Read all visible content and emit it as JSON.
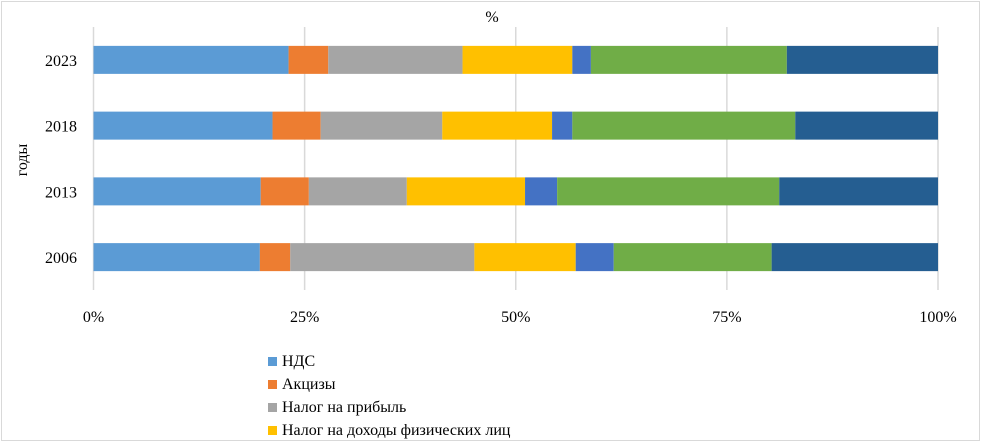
{
  "chart_data": {
    "type": "bar",
    "orientation": "horizontal",
    "stacked": "percent",
    "title": "%",
    "xlabel": "",
    "ylabel": "годы",
    "xlim": [
      0,
      100
    ],
    "xticks": [
      "0%",
      "25%",
      "50%",
      "75%",
      "100%"
    ],
    "grid": true,
    "legend_position": "bottom",
    "categories": [
      "2006",
      "2013",
      "2018",
      "2023"
    ],
    "series": [
      {
        "name": "НДС",
        "color": "#5B9BD5",
        "values": [
          19.7,
          19.8,
          21.2,
          23.1
        ]
      },
      {
        "name": "Акцизы",
        "color": "#ED7D31",
        "values": [
          3.6,
          5.7,
          5.7,
          4.7
        ]
      },
      {
        "name": "Налог на прибыль",
        "color": "#A5A5A5",
        "values": [
          21.8,
          11.6,
          14.4,
          15.9
        ]
      },
      {
        "name": "Налог на доходы физических лиц",
        "color": "#FFC000",
        "values": [
          12.0,
          14.0,
          13.0,
          13.0
        ]
      },
      {
        "color": "#4472C4",
        "values": [
          4.5,
          3.8,
          2.4,
          2.2
        ]
      },
      {
        "color": "#70AD47",
        "values": [
          18.7,
          26.3,
          26.4,
          23.2
        ]
      },
      {
        "color": "#255E91",
        "values": [
          19.7,
          18.8,
          16.9,
          17.9
        ]
      }
    ]
  }
}
